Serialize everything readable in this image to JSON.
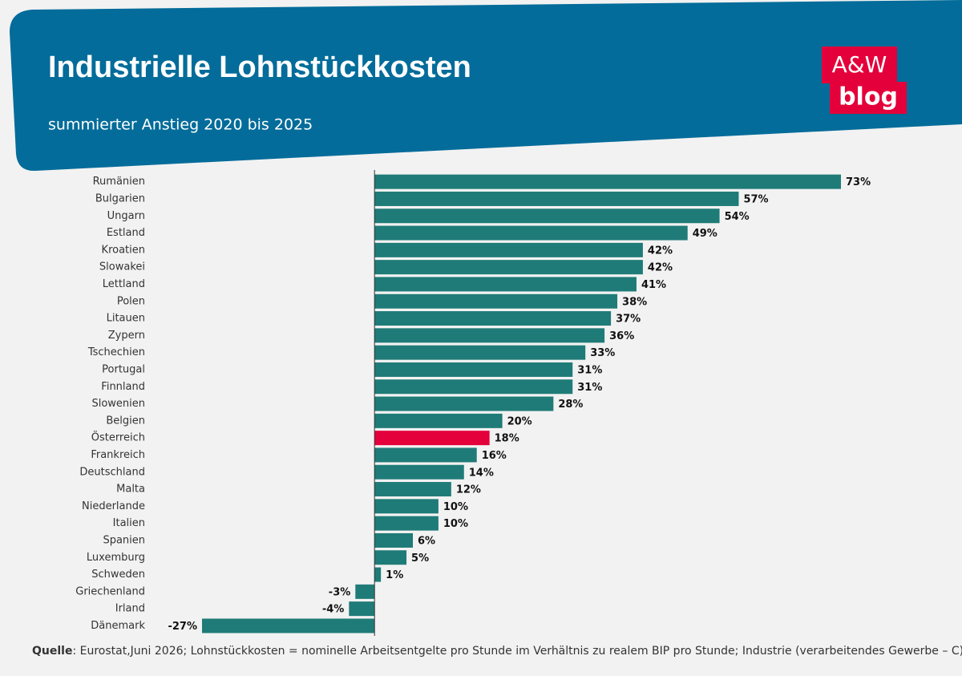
{
  "title": "Industrielle Lohnstückkosten",
  "subtitle": "summierter Anstieg 2020 bis 2025",
  "logo": {
    "line1": "A&W",
    "line2": "blog"
  },
  "chart_data": {
    "type": "barh",
    "categories": [
      "Rumänien",
      "Bulgarien",
      "Ungarn",
      "Estland",
      "Kroatien",
      "Slowakei",
      "Lettland",
      "Polen",
      "Litauen",
      "Zypern",
      "Tschechien",
      "Portugal",
      "Finnland",
      "Slowenien",
      "Belgien",
      "Österreich",
      "Frankreich",
      "Deutschland",
      "Malta",
      "Niederlande",
      "Italien",
      "Spanien",
      "Luxemburg",
      "Schweden",
      "Griechenland",
      "Irland",
      "Dänemark"
    ],
    "values": [
      73,
      57,
      54,
      49,
      42,
      42,
      41,
      38,
      37,
      36,
      33,
      31,
      31,
      28,
      20,
      18,
      16,
      14,
      12,
      10,
      10,
      6,
      5,
      1,
      -3,
      -4,
      -27
    ],
    "value_labels": [
      "73%",
      "57%",
      "54%",
      "49%",
      "42%",
      "42%",
      "41%",
      "38%",
      "37%",
      "36%",
      "33%",
      "31%",
      "31%",
      "28%",
      "20%",
      "18%",
      "16%",
      "14%",
      "12%",
      "10%",
      "10%",
      "6%",
      "5%",
      "1%",
      "-3%",
      "-4%",
      "-27%"
    ],
    "colors": [
      "#1f7b77",
      "#1f7b77",
      "#1f7b77",
      "#1f7b77",
      "#1f7b77",
      "#1f7b77",
      "#1f7b77",
      "#1f7b77",
      "#1f7b77",
      "#1f7b77",
      "#1f7b77",
      "#1f7b77",
      "#1f7b77",
      "#1f7b77",
      "#1f7b77",
      "#e4003a",
      "#1f7b77",
      "#1f7b77",
      "#1f7b77",
      "#1f7b77",
      "#1f7b77",
      "#1f7b77",
      "#1f7b77",
      "#1f7b77",
      "#1f7b77",
      "#1f7b77",
      "#1f7b77"
    ]
  },
  "source": {
    "label": "Quelle",
    "text": ": Eurostat,Juni 2026; Lohnstückkosten = nominelle Arbeitsentgelte pro Stunde im Verhältnis zu realem BIP pro Stunde; Industrie (verarbeitendes Gewerbe – C)"
  }
}
